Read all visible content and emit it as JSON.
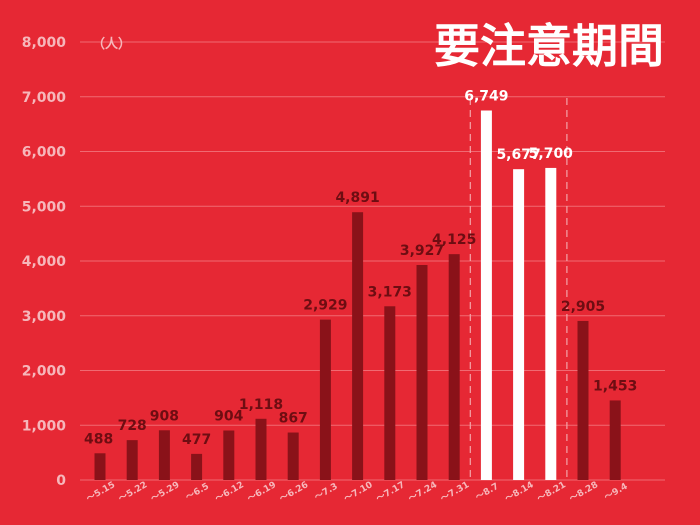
{
  "chart_data": {
    "type": "bar",
    "title": "要注意期間",
    "ylabel": "（人）",
    "xlabel": "",
    "ylim": [
      0,
      8000
    ],
    "yticks": [
      0,
      1000,
      2000,
      3000,
      4000,
      5000,
      6000,
      7000,
      8000
    ],
    "ytick_labels": [
      "0",
      "1,000",
      "2,000",
      "3,000",
      "4,000",
      "5,000",
      "6,000",
      "7,000",
      "8,000"
    ],
    "categories": [
      "～5.15",
      "～5.22",
      "～5.29",
      "～6.5",
      "～6.12",
      "～6.19",
      "～6.26",
      "～7.3",
      "～7.10",
      "～7.17",
      "～7.24",
      "～7.31",
      "～8.7",
      "～8.14",
      "～8.21",
      "～8.28",
      "～9.4"
    ],
    "values": [
      488,
      728,
      908,
      477,
      904,
      1118,
      867,
      2929,
      4891,
      3173,
      3927,
      4125,
      6749,
      5677,
      5700,
      2905,
      1453
    ],
    "value_labels": [
      "488",
      "728",
      "908",
      "477",
      "904",
      "1,118",
      "867",
      "2,929",
      "4,891",
      "3,173",
      "3,927",
      "4,125",
      "6,749",
      "5,677",
      "5,700",
      "2,905",
      "1,453"
    ],
    "highlight_range": [
      "～8.7",
      "～8.21"
    ],
    "grid": true,
    "legend": "none",
    "colors": {
      "background": "#e62834",
      "bar": "#8a1219",
      "highlight_bar": "#ffffff",
      "grid": "#f06a72",
      "tick_text": "#f6b7bb",
      "label_dark": "#6e0d12",
      "label_light": "#ffffff"
    }
  }
}
